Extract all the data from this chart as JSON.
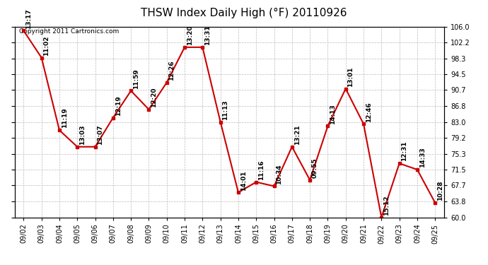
{
  "title": "THSW Index Daily High (°F) 20110926",
  "copyright": "Copyright 2011 Cartronics.com",
  "dates": [
    "09/02",
    "09/03",
    "09/04",
    "09/05",
    "09/06",
    "09/07",
    "09/08",
    "09/09",
    "09/10",
    "09/11",
    "09/12",
    "09/13",
    "09/14",
    "09/15",
    "09/16",
    "09/17",
    "09/18",
    "09/19",
    "09/20",
    "09/21",
    "09/22",
    "09/23",
    "09/24",
    "09/25"
  ],
  "values": [
    105.0,
    98.5,
    81.0,
    77.0,
    77.0,
    84.0,
    90.5,
    86.0,
    92.5,
    101.0,
    101.0,
    83.0,
    66.0,
    68.5,
    67.5,
    77.0,
    69.0,
    82.0,
    91.0,
    82.5,
    60.0,
    73.0,
    71.5,
    63.5
  ],
  "times": [
    "13:17",
    "11:02",
    "11:19",
    "13:03",
    "13:07",
    "12:19",
    "11:59",
    "12:20",
    "12:26",
    "13:20",
    "13:31",
    "11:13",
    "14:01",
    "11:16",
    "10:34",
    "13:21",
    "09:55",
    "14:13",
    "13:01",
    "12:46",
    "15:12",
    "12:31",
    "14:33",
    "10:28"
  ],
  "line_color": "#cc0000",
  "marker_color": "#cc0000",
  "bg_color": "#ffffff",
  "grid_color": "#bbbbbb",
  "ylim": [
    60.0,
    106.0
  ],
  "yticks": [
    60.0,
    63.8,
    67.7,
    71.5,
    75.3,
    79.2,
    83.0,
    86.8,
    90.7,
    94.5,
    98.3,
    102.2,
    106.0
  ],
  "title_fontsize": 11,
  "label_fontsize": 6.5,
  "tick_fontsize": 7,
  "copyright_fontsize": 6.5
}
